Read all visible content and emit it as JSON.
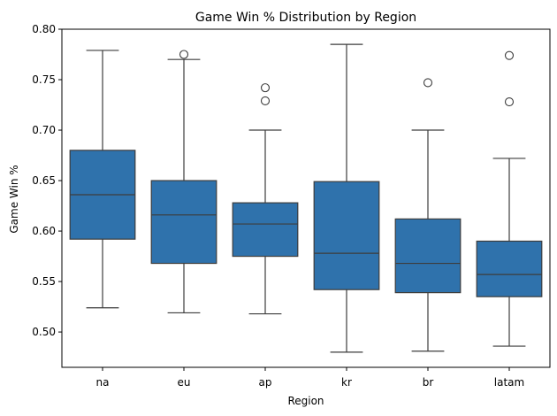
{
  "chart_data": {
    "type": "box",
    "title": "Game Win % Distribution by Region",
    "xlabel": "Region",
    "ylabel": "Game Win %",
    "ylim": [
      0.465,
      0.8
    ],
    "yticks": [
      "0.50",
      "0.55",
      "0.60",
      "0.65",
      "0.70",
      "0.75",
      "0.80"
    ],
    "grid": false,
    "legend": "none",
    "box_color": "#2f72ac",
    "categories": [
      "na",
      "eu",
      "ap",
      "kr",
      "br",
      "latam"
    ],
    "boxes": [
      {
        "category": "na",
        "whisker_low": 0.524,
        "q1": 0.592,
        "median": 0.636,
        "q3": 0.68,
        "whisker_high": 0.779,
        "outliers": []
      },
      {
        "category": "eu",
        "whisker_low": 0.519,
        "q1": 0.568,
        "median": 0.616,
        "q3": 0.65,
        "whisker_high": 0.77,
        "outliers": [
          0.775
        ]
      },
      {
        "category": "ap",
        "whisker_low": 0.518,
        "q1": 0.575,
        "median": 0.607,
        "q3": 0.628,
        "whisker_high": 0.7,
        "outliers": [
          0.729,
          0.742
        ]
      },
      {
        "category": "kr",
        "whisker_low": 0.48,
        "q1": 0.542,
        "median": 0.578,
        "q3": 0.649,
        "whisker_high": 0.785,
        "outliers": []
      },
      {
        "category": "br",
        "whisker_low": 0.481,
        "q1": 0.539,
        "median": 0.568,
        "q3": 0.612,
        "whisker_high": 0.7,
        "outliers": [
          0.747
        ]
      },
      {
        "category": "latam",
        "whisker_low": 0.486,
        "q1": 0.535,
        "median": 0.557,
        "q3": 0.59,
        "whisker_high": 0.672,
        "outliers": [
          0.728,
          0.774
        ]
      }
    ]
  }
}
